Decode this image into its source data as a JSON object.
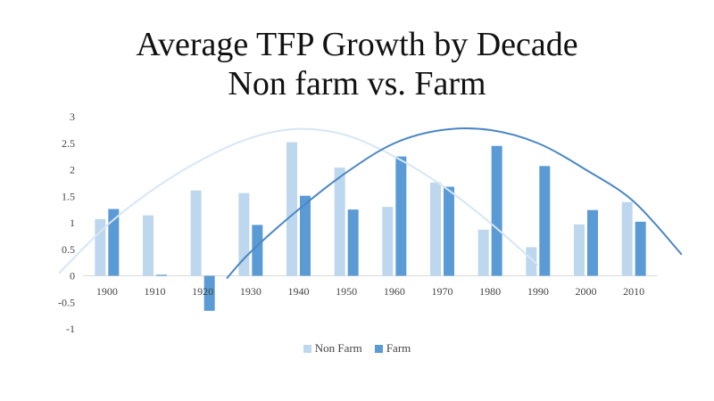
{
  "chart_data": {
    "type": "bar",
    "title_lines": [
      "Average TFP Growth by Decade",
      "Non farm vs. Farm"
    ],
    "categories": [
      "1900",
      "1910",
      "1920",
      "1930",
      "1940",
      "1950",
      "1960",
      "1970",
      "1980",
      "1990",
      "2000",
      "2010"
    ],
    "series": [
      {
        "name": "Non Farm",
        "color": "#bdd7ee",
        "values": [
          1.07,
          1.14,
          1.61,
          1.56,
          2.52,
          2.04,
          1.3,
          1.76,
          0.87,
          0.54,
          0.97,
          1.39
        ]
      },
      {
        "name": "Farm",
        "color": "#5b9bd5",
        "values": [
          1.26,
          0.02,
          -0.66,
          0.96,
          1.51,
          1.25,
          2.25,
          1.68,
          2.45,
          2.07,
          1.24,
          1.02
        ]
      }
    ],
    "trendlines": [
      {
        "series": "Non Farm",
        "color": "#d6e6f5",
        "x": [
          1890,
          1900,
          1910,
          1920,
          1930,
          1940,
          1950,
          1960,
          1970,
          1980,
          1990
        ],
        "values": [
          0.05,
          0.95,
          1.65,
          2.2,
          2.6,
          2.77,
          2.65,
          2.25,
          1.7,
          1.0,
          0.2
        ]
      },
      {
        "series": "Farm",
        "color": "#4a86c5",
        "x": [
          1925,
          1930,
          1940,
          1950,
          1960,
          1970,
          1980,
          1990,
          2000,
          2010,
          2020
        ],
        "values": [
          -0.05,
          0.45,
          1.25,
          1.95,
          2.5,
          2.75,
          2.75,
          2.5,
          2.0,
          1.4,
          0.4
        ]
      }
    ],
    "ylim": [
      -1,
      3
    ],
    "yticks": [
      "3",
      "2.5",
      "2",
      "1.5",
      "1",
      "0.5",
      "0",
      "-0.5",
      "-1"
    ],
    "ytick_values": [
      3,
      2.5,
      2,
      1.5,
      1,
      0.5,
      0,
      -0.5,
      -1
    ],
    "grid": false,
    "legend_position": "bottom"
  }
}
